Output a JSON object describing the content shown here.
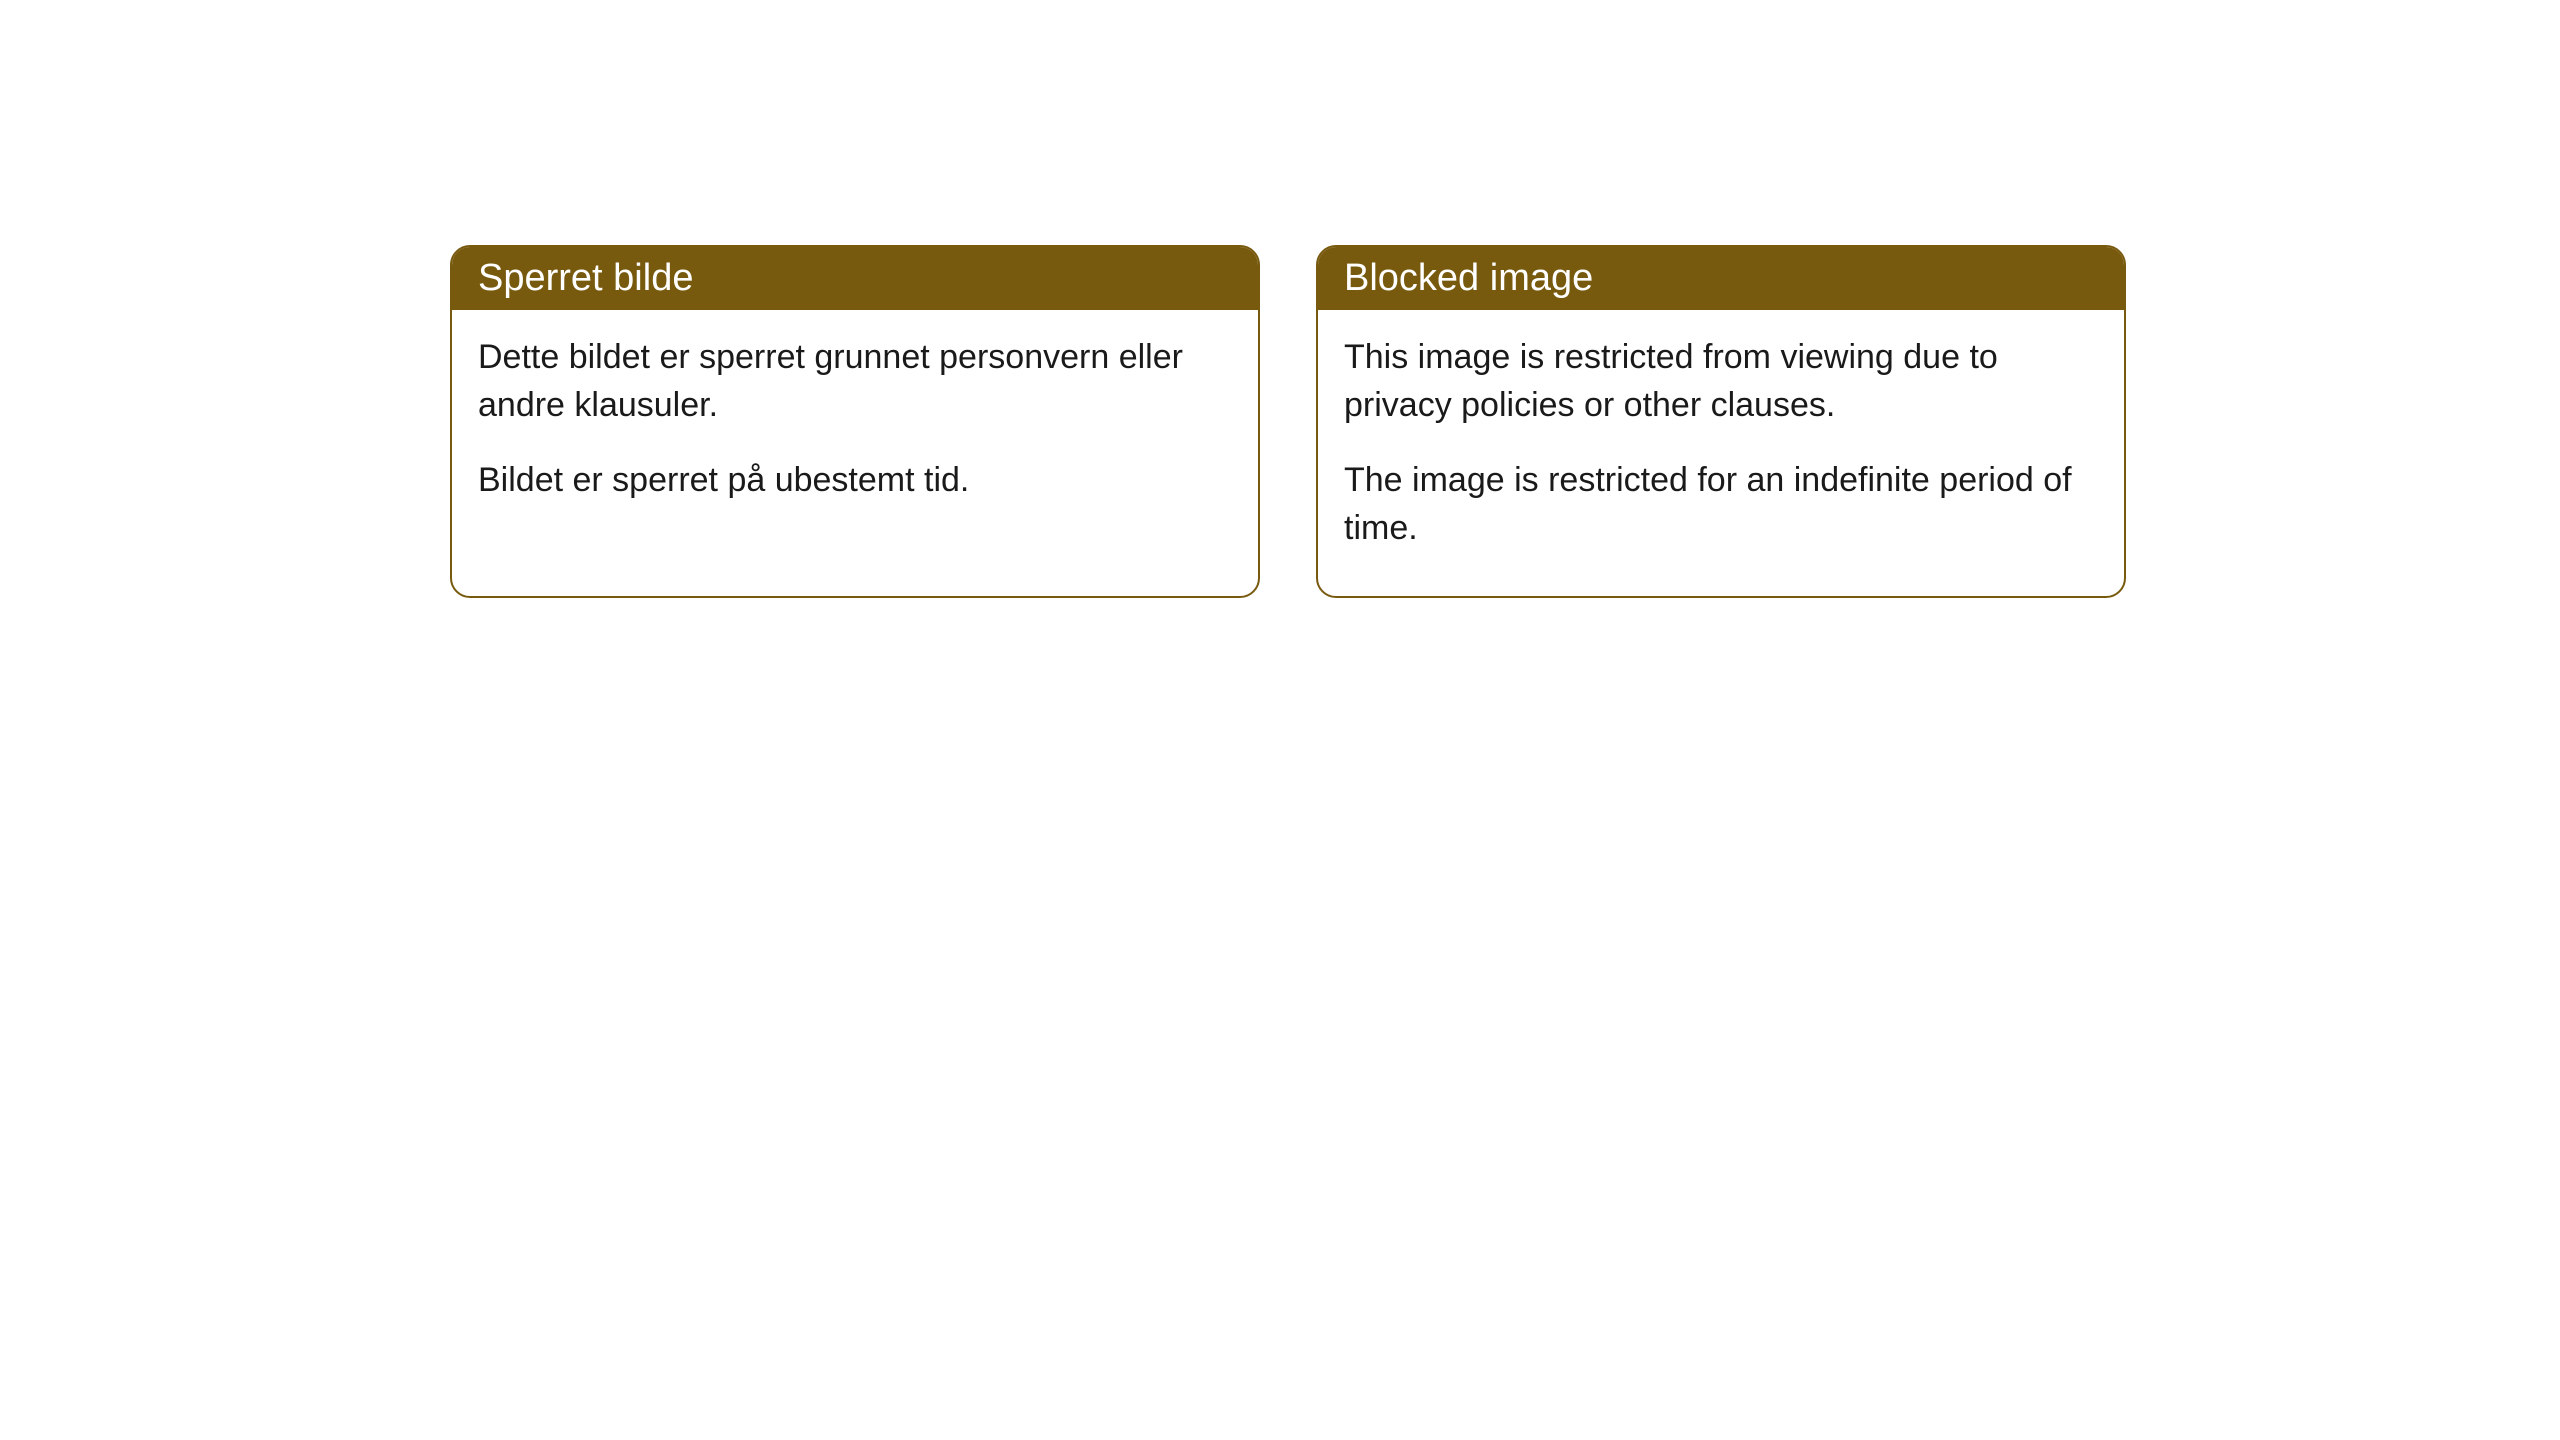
{
  "cards": [
    {
      "title": "Sperret bilde",
      "paragraph1": "Dette bildet er sperret grunnet personvern eller andre klausuler.",
      "paragraph2": "Bildet er sperret på ubestemt tid."
    },
    {
      "title": "Blocked image",
      "paragraph1": "This image is restricted from viewing due to privacy policies or other clauses.",
      "paragraph2": "The image is restricted for an indefinite period of time."
    }
  ],
  "style": {
    "header_bg_color": "#785a0f",
    "header_text_color": "#ffffff",
    "border_color": "#785a0f",
    "body_bg_color": "#ffffff",
    "body_text_color": "#1a1a1a",
    "border_radius": 20,
    "header_fontsize": 38,
    "body_fontsize": 34
  }
}
